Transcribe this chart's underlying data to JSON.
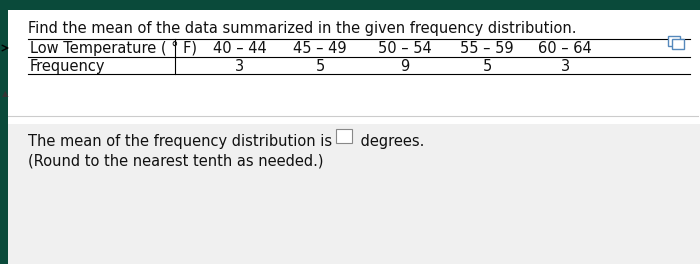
{
  "title_line": "Find the mean of the data summarized in the given frequency distribution.",
  "row1_label": "Low Temperature ( ° F)",
  "row1_values": [
    "40 – 44",
    "45 – 49",
    "50 – 54",
    "55 – 59",
    "60 – 64"
  ],
  "row2_label": "Frequency",
  "row2_values": [
    "3",
    "5",
    "9",
    "5",
    "3"
  ],
  "bottom_line1": "The mean of the frequency distribution is",
  "bottom_line2": "(Round to the nearest tenth as needed.)",
  "suffix": "degrees.",
  "top_bar_color": "#0a4a3a",
  "bg_color": "#e8e8e8",
  "content_bg": "#f5f5f5",
  "text_color": "#111111",
  "line_color": "#888888",
  "font_size": 10.5
}
